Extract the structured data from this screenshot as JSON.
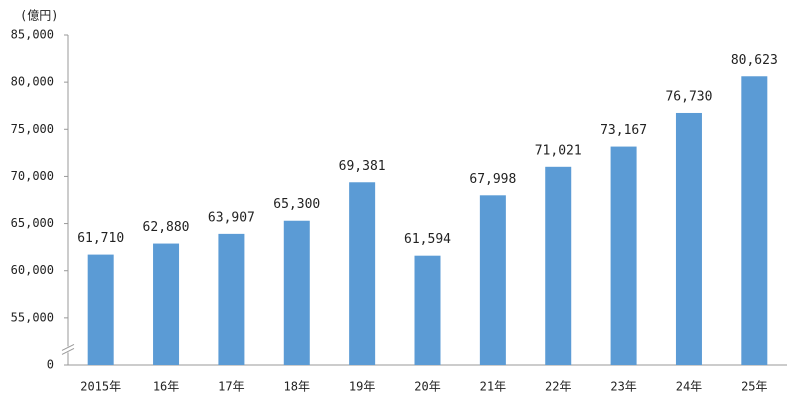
{
  "chart_data": {
    "type": "bar",
    "unit_label": "(億円)",
    "categories": [
      "2015年",
      "16年",
      "17年",
      "18年",
      "19年",
      "20年",
      "21年",
      "22年",
      "23年",
      "24年",
      "25年"
    ],
    "values": [
      61710,
      62880,
      63907,
      65300,
      69381,
      61594,
      67998,
      71021,
      73167,
      76730,
      80623
    ],
    "value_labels": [
      "61,710",
      "62,880",
      "63,907",
      "65,300",
      "69,381",
      "61,594",
      "67,998",
      "71,021",
      "73,167",
      "76,730",
      "80,623"
    ],
    "color": "#5b9bd5",
    "ylim": [
      0,
      85000
    ],
    "axis_break": true,
    "yticks": [
      0,
      {
        "value": 55000,
        "label": "55,000"
      },
      {
        "value": 60000,
        "label": "60,000"
      },
      {
        "value": 65000,
        "label": "65,000"
      },
      {
        "value": 70000,
        "label": "70,000"
      },
      {
        "value": 75000,
        "label": "75,000"
      },
      {
        "value": 80000,
        "label": "80,000"
      },
      {
        "value": 85000,
        "label": "85,000"
      }
    ],
    "grid": false
  }
}
